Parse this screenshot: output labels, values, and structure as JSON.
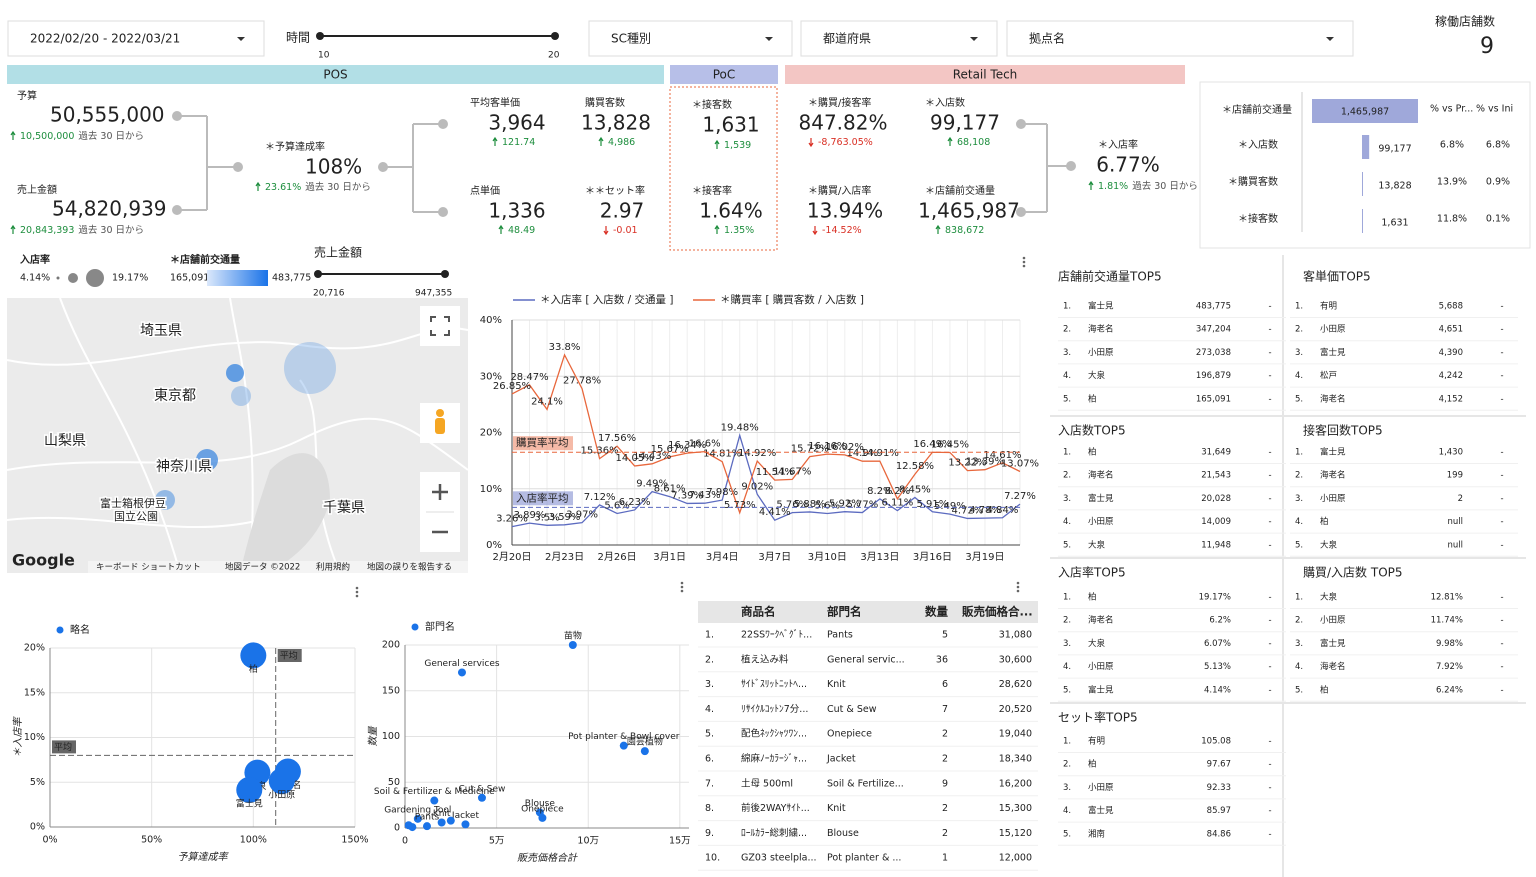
{
  "filters": {
    "date_range": "2022/02/20 - 2022/03/21",
    "time_label": "時間",
    "time_min": 10,
    "time_max": 20,
    "sc_type": "SC種別",
    "prefecture": "都道府県",
    "site": "拠点名",
    "store_count_label": "稼働店舗数",
    "store_count": 9
  },
  "sections": [
    "POS",
    "PoC",
    "Retail Tech"
  ],
  "kpis": [
    {
      "label": "予算",
      "value": "50,555,000",
      "delta": "10,500,000",
      "note": "過去 30 日から"
    },
    {
      "label": "売上金額",
      "value": "54,820,939",
      "delta": "20,843,393",
      "note": "過去 30 日から"
    },
    {
      "label": "＊予算達成率",
      "value": "108%",
      "delta": "23.61%",
      "note": "過去 30 日から"
    },
    {
      "label": "平均客単価",
      "value": "3,964",
      "delta": "121.74"
    },
    {
      "label": "購買客数",
      "value": "13,828",
      "delta": "4,986"
    },
    {
      "label": "点単価",
      "value": "1,336",
      "delta": "48.49"
    },
    {
      "label": "＊＊セット率",
      "value": "2.97",
      "delta": "-0.01"
    },
    {
      "label": "＊接客数",
      "value": "1,631",
      "delta": "1,539"
    },
    {
      "label": "＊接客率",
      "value": "1.64%",
      "delta": "1.35%"
    },
    {
      "label": "＊購買/接客率",
      "value": "847.82%",
      "delta": "-8,763.05%"
    },
    {
      "label": "＊入店数",
      "value": "99,177",
      "delta": "68,108"
    },
    {
      "label": "＊購買/入店率",
      "value": "13.94%",
      "delta": "-14.52%"
    },
    {
      "label": "＊店舗前交通量",
      "value": "1,465,987",
      "delta": "838,672"
    },
    {
      "label": "＊入店率",
      "value": "6.77%",
      "delta": "1.81%",
      "note": "過去 30 日から"
    }
  ],
  "funnel": {
    "header": {
      "label": "＊店舗前交通量",
      "value": {
        "value": 1465987,
        "label": "1,465,987"
      },
      "columns": [
        "% vs Pr...",
        "% vs Ini"
      ]
    },
    "color": "#9fa8da",
    "rows": [
      {
        "label": "＊入店数",
        "value": {
          "value": 99177,
          "label": "99,177"
        },
        "pct_prev": "6.8%",
        "pct_initial": "6.8%"
      },
      {
        "label": "＊購買客数",
        "value": {
          "value": 13828,
          "label": "13,828"
        },
        "pct_prev": "13.9%",
        "pct_initial": "0.9%"
      },
      {
        "label": "＊接客数",
        "value": {
          "value": 1631,
          "label": "1,631"
        },
        "pct_prev": "11.8%",
        "pct_initial": "0.1%"
      }
    ]
  },
  "map": {
    "legend": {
      "rate_label": "入店率",
      "rate_min": "4.14%",
      "rate_max": "19.17%",
      "traffic_label": "＊店舗前交通量",
      "traffic_min": "165,091",
      "traffic_max": "483,775",
      "sales_label": "売上金額",
      "sales_min": "20,716",
      "sales_max": "947,355"
    },
    "places": [
      "埼玉県",
      "東京都",
      "山梨県",
      "神奈川県",
      "千葉県",
      "富士箱根伊豆",
      "国立公園"
    ],
    "logo": "Google",
    "footer": [
      "キーボード ショートカット",
      "地図データ ©2022",
      "利用規約",
      "地図の誤りを報告する"
    ]
  },
  "line_chart": {
    "type": "line",
    "categories": [
      "2月20日",
      null,
      null,
      "2月23日",
      null,
      null,
      "2月26日",
      null,
      null,
      "3月1日",
      null,
      null,
      "3月4日",
      null,
      null,
      "3月7日",
      null,
      null,
      "3月10日",
      null,
      null,
      "3月13日",
      null,
      null,
      "3月16日",
      null,
      null,
      "3月19日",
      null,
      null
    ],
    "ylim": [
      0,
      40
    ],
    "yticks": [
      {
        "value": 0,
        "label": "0%"
      },
      {
        "value": 10,
        "label": "10%"
      },
      {
        "value": 20,
        "label": "20%"
      },
      {
        "value": 30,
        "label": "30%"
      },
      {
        "value": 40,
        "label": "40%"
      }
    ],
    "grid": true,
    "series": [
      {
        "name": "＊入店率 [ 入店数 / 交通量 ]",
        "color": "#5c6bc0",
        "values": [
          3.26,
          3.89,
          3.5,
          3.59,
          3.97,
          7.12,
          5.6,
          6.23,
          9.49,
          8.61,
          7.39,
          7.43,
          7.98,
          19.48,
          9.02,
          4.41,
          5.76,
          5.88,
          5.6,
          5.92,
          5.77,
          8.2,
          6.11,
          8.45,
          5.91,
          5.49,
          4.72,
          4.78,
          4.84,
          7.27
        ],
        "value_labels": [
          "3.26%",
          "3.89%",
          "3.5%",
          "3.59%",
          "3.97%",
          "7.12%",
          "5.6%",
          "6.23%",
          "9.49%",
          "8.61%",
          "7.39%",
          "7.43%",
          "7.98%",
          "19.48%",
          "9.02%",
          "4.41%",
          "5.76%",
          "5.88%",
          "5.6%",
          "5.92%",
          "5.77%",
          "8.2%",
          "6.11%",
          "8.45%",
          "5.91%",
          "5.49%",
          "4.72%",
          "4.78%",
          "4.84%",
          "7.27%"
        ]
      },
      {
        "name": "＊購買率 [ 購買客数 / 入店数 ]",
        "color": "#e8673c",
        "values": [
          26.85,
          28.47,
          24.1,
          33.8,
          27.78,
          15.36,
          17.56,
          14.05,
          14.43,
          15.67,
          16.34,
          16.6,
          14.81,
          5.73,
          14.92,
          11.54,
          11.67,
          15.72,
          16.16,
          16.02,
          14.9,
          14.91,
          8.2,
          12.58,
          16.49,
          16.45,
          13.22,
          13.39,
          14.61,
          13.07
        ],
        "value_labels": [
          "26.85%",
          "28.47%",
          "24.1%",
          "33.8%",
          "27.78%",
          "15.36%",
          "17.56%",
          "14.05%",
          "14.43%",
          "15.67%",
          "16.34%",
          "16.6%",
          "14.81%",
          "5.73%",
          "14.92%",
          "11.54%",
          "11.67%",
          "15.72%",
          "16.16%",
          "16.02%",
          "14.9%",
          "14.91%",
          "8.2%",
          "12.58%",
          "16.49%",
          "16.45%",
          "13.22%",
          "13.39%",
          "14.61%",
          "13.07%"
        ]
      }
    ],
    "reference_lines": [
      {
        "label": "購買率平均",
        "value": 16.5,
        "color": "#e8673c"
      },
      {
        "label": "入店率平均",
        "value": 6.7,
        "color": "#5c6bc0"
      }
    ]
  },
  "top5": [
    {
      "title": "店舗前交通量TOP5",
      "rows": [
        [
          "1.",
          "富士見",
          "483,775",
          "-"
        ],
        [
          "2.",
          "海老名",
          "347,204",
          "-"
        ],
        [
          "3.",
          "小田原",
          "273,038",
          "-"
        ],
        [
          "4.",
          "大泉",
          "196,879",
          "-"
        ],
        [
          "5.",
          "柏",
          "165,091",
          "-"
        ]
      ]
    },
    {
      "title": "客単価TOP5",
      "rows": [
        [
          "1.",
          "有明",
          "5,688",
          "-"
        ],
        [
          "2.",
          "小田原",
          "4,651",
          "-"
        ],
        [
          "3.",
          "富士見",
          "4,390",
          "-"
        ],
        [
          "4.",
          "松戸",
          "4,242",
          "-"
        ],
        [
          "5.",
          "海老名",
          "4,152",
          "-"
        ]
      ]
    },
    {
      "title": "入店数TOP5",
      "rows": [
        [
          "1.",
          "柏",
          "31,649",
          "-"
        ],
        [
          "2.",
          "海老名",
          "21,543",
          "-"
        ],
        [
          "3.",
          "富士見",
          "20,028",
          "-"
        ],
        [
          "4.",
          "小田原",
          "14,009",
          "-"
        ],
        [
          "5.",
          "大泉",
          "11,948",
          "-"
        ]
      ]
    },
    {
      "title": "接客回数TOP5",
      "rows": [
        [
          "1.",
          "富士見",
          "1,430",
          "-"
        ],
        [
          "2.",
          "海老名",
          "199",
          "-"
        ],
        [
          "3.",
          "小田原",
          "2",
          "-"
        ],
        [
          "4.",
          "柏",
          "null",
          "-"
        ],
        [
          "5.",
          "大泉",
          "null",
          "-"
        ]
      ]
    },
    {
      "title": "入店率TOP5",
      "rows": [
        [
          "1.",
          "柏",
          "19.17%",
          "-"
        ],
        [
          "2.",
          "海老名",
          "6.2%",
          "-"
        ],
        [
          "3.",
          "大泉",
          "6.07%",
          "-"
        ],
        [
          "4.",
          "小田原",
          "5.13%",
          "-"
        ],
        [
          "5.",
          "富士見",
          "4.14%",
          "-"
        ]
      ]
    },
    {
      "title": "購買/入店数 TOP5",
      "rows": [
        [
          "1.",
          "大泉",
          "12.81%",
          "-"
        ],
        [
          "2.",
          "小田原",
          "11.74%",
          "-"
        ],
        [
          "3.",
          "富士見",
          "9.98%",
          "-"
        ],
        [
          "4.",
          "海老名",
          "7.92%",
          "-"
        ],
        [
          "5.",
          "柏",
          "6.24%",
          "-"
        ]
      ]
    },
    {
      "title": "セット率TOP5",
      "rows": [
        [
          "1.",
          "有明",
          "105.08",
          "-"
        ],
        [
          "2.",
          "柏",
          "97.67",
          "-"
        ],
        [
          "3.",
          "小田原",
          "92.33",
          "-"
        ],
        [
          "4.",
          "富士見",
          "85.97",
          "-"
        ],
        [
          "5.",
          "湘南",
          "84.86",
          "-"
        ]
      ]
    }
  ],
  "product_table": {
    "columns": [
      "商品名",
      "部門名",
      "数量",
      "販売価格合..."
    ],
    "rows": [
      [
        "1.",
        "22SSﾜｰｸﾍﾞｸﾞﾄ...",
        "Pants",
        "5",
        "31,080"
      ],
      [
        "2.",
        "植え込み料",
        "General servic...",
        "36",
        "30,600"
      ],
      [
        "3.",
        "ｻｲﾄﾞｽﾘｯﾄﾆｯﾄﾍ...",
        "Knit",
        "6",
        "28,620"
      ],
      [
        "4.",
        "ﾘｻｲｸﾙｺｯﾄﾝ7分...",
        "Cut & Sew",
        "7",
        "20,520"
      ],
      [
        "5.",
        "配色ﾈｯｸｼｬﾂﾜﾝ...",
        "Onepiece",
        "2",
        "19,040"
      ],
      [
        "6.",
        "綿麻ﾉｰｶﾗｰｼﾞｬ...",
        "Jacket",
        "2",
        "18,340"
      ],
      [
        "7.",
        "土母 500ml",
        "Soil & Fertilize...",
        "9",
        "16,200"
      ],
      [
        "8.",
        "前後2WAYｻｲﾄ...",
        "Knit",
        "2",
        "15,300"
      ],
      [
        "9.",
        "ﾛｰﾙｶﾗｰ総刺繍...",
        "Blouse",
        "2",
        "15,120"
      ],
      [
        "10.",
        "GZ03 steelpla...",
        "Pot planter & ...",
        "1",
        "12,000"
      ]
    ]
  },
  "bubble_chart": {
    "type": "bubble",
    "legend": "略名",
    "color": "#1a73e8",
    "x_label": "予算達成率",
    "y_label": "＊入店率",
    "xlim": [
      0,
      150
    ],
    "xticks": [
      {
        "value": 0,
        "label": "0%"
      },
      {
        "value": 50,
        "label": "50%"
      },
      {
        "value": 100,
        "label": "100%"
      },
      {
        "value": 150,
        "label": "150%"
      }
    ],
    "ylim": [
      0,
      20
    ],
    "yticks": [
      {
        "value": 0,
        "label": "0%"
      },
      {
        "value": 5,
        "label": "5%"
      },
      {
        "value": 10,
        "label": "10%"
      },
      {
        "value": 15,
        "label": "15%"
      },
      {
        "value": 20,
        "label": "20%"
      }
    ],
    "grid": true,
    "points": {
      "names": [
        "柏",
        "大泉",
        "海老名",
        "小田原",
        "富士見"
      ],
      "x": [
        100,
        102,
        117,
        114,
        98
      ],
      "y": [
        19.17,
        6.07,
        6.2,
        5.13,
        4.14
      ]
    },
    "averages": [
      {
        "axis": "x",
        "value": 111,
        "label": "平均"
      },
      {
        "axis": "y",
        "value": 8,
        "label": "平均"
      }
    ]
  },
  "scatter_chart": {
    "type": "scatter",
    "legend": "部門名",
    "color": "#1a73e8",
    "x_label": "販売価格合計",
    "y_label": "数量",
    "xlim": [
      0,
      155000
    ],
    "xticks": [
      0,
      {
        "value": 50000,
        "label": "5万"
      },
      {
        "value": 100000,
        "label": "10万"
      },
      {
        "value": 150000,
        "label": "15万"
      }
    ],
    "ylim": [
      0,
      200
    ],
    "yticks": [
      0,
      50,
      100,
      150,
      200
    ],
    "grid": true,
    "points": {
      "names": [
        "苗物",
        "General services",
        "Pot planter & Bowl cover",
        "園芸植物",
        "Soil & Fertilizer & Medicine",
        "Gardening Tool",
        "Cut & Sew",
        "Blouse",
        "Onepiece",
        "Knit",
        "Jacket",
        "Pants",
        null,
        null,
        null
      ],
      "x": [
        91600,
        31100,
        119400,
        130900,
        16000,
        7000,
        42000,
        73600,
        75000,
        20000,
        33000,
        12000,
        2000,
        4000,
        25000
      ],
      "y": [
        200,
        170,
        90,
        84,
        30,
        10,
        33,
        17,
        11,
        6,
        4,
        2,
        3,
        1,
        8
      ]
    }
  }
}
